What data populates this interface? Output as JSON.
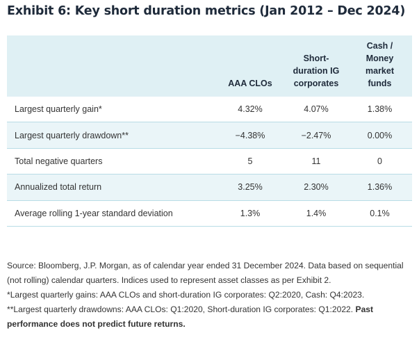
{
  "title": "Exhibit 6: Key short duration metrics (Jan 2012 – Dec 2024)",
  "table": {
    "columns": [
      "AAA CLOs",
      "Short-duration IG corporates",
      "Cash / Money market funds"
    ],
    "rows": [
      {
        "label": "Largest quarterly gain*",
        "values": [
          "4.32%",
          "4.07%",
          "1.38%"
        ]
      },
      {
        "label": "Largest quarterly drawdown**",
        "values": [
          "−4.38%",
          "−2.47%",
          "0.00%"
        ]
      },
      {
        "label": "Total negative quarters",
        "values": [
          "5",
          "11",
          "0"
        ]
      },
      {
        "label": "Annualized total return",
        "values": [
          "3.25%",
          "2.30%",
          "1.36%"
        ]
      },
      {
        "label": "Average rolling 1-year standard deviation",
        "values": [
          "1.3%",
          "1.4%",
          "0.1%"
        ]
      }
    ]
  },
  "notes": {
    "source": "Source: Bloomberg, J.P. Morgan, as of calendar year ended 31 December 2024. Data based on sequential (not rolling) calendar quarters. Indices used to represent asset classes as per Exhibit 2.",
    "gains": "*Largest quarterly gains: AAA CLOs and short-duration IG corporates: Q2:2020, Cash: Q4:2023.",
    "drawdowns": "**Largest quarterly drawdowns: AAA CLOs: Q1:2020, Short-duration IG corporates: Q1:2022.",
    "disclaimer": "Past performance does not predict future returns."
  }
}
